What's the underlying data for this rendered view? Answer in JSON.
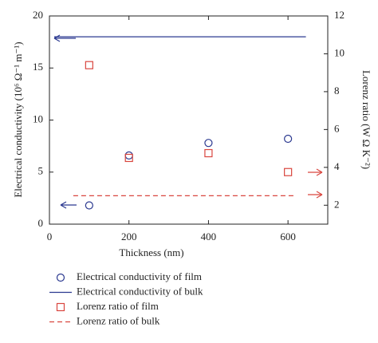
{
  "chart_data": {
    "type": "scatter",
    "xlabel": "Thickness (nm)",
    "ylabel": "Electrical conductivity (10⁶ Ω⁻¹ m⁻¹)",
    "y2label": "Lorenz ratio (W Ω K⁻²)",
    "xlim": [
      0,
      700
    ],
    "xticks": [
      0,
      200,
      400,
      600
    ],
    "ylim": [
      0,
      20
    ],
    "yticks": [
      0,
      5,
      10,
      15,
      20
    ],
    "y2lim": [
      1,
      12
    ],
    "y2ticks": [
      2,
      4,
      6,
      8,
      10,
      12
    ],
    "series": [
      {
        "name": "Electrical conductivity of film",
        "color": "#2b3990",
        "marker": "circle",
        "x": [
          100,
          200,
          400,
          600
        ],
        "values": [
          1.8,
          6.6,
          7.8,
          8.2
        ]
      },
      {
        "name": "Electrical conductivity of bulk",
        "color": "#2b3990",
        "marker": "line",
        "x": [
          12,
          645
        ],
        "values": [
          18,
          18
        ]
      },
      {
        "name": "Lorenz ratio of film",
        "color": "#d9463f",
        "marker": "square",
        "axis": "y2",
        "x": [
          100,
          200,
          400,
          600
        ],
        "values": [
          9.4,
          4.5,
          4.75,
          3.75
        ]
      },
      {
        "name": "Lorenz ratio of bulk",
        "color": "#d9463f",
        "marker": "dashed",
        "axis": "y2",
        "x": [
          60,
          620
        ],
        "values": [
          2.5,
          2.5
        ]
      }
    ]
  }
}
